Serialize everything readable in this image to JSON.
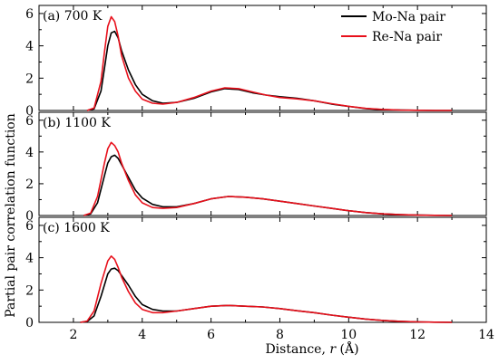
{
  "chart_data": {
    "type": "line",
    "xlabel_parts": [
      "Distance, ",
      "r",
      " (Å)"
    ],
    "ylabel": "Partial pair correlation function",
    "xlim": [
      1,
      14
    ],
    "ylim": [
      0,
      6.5
    ],
    "xticks": [
      2,
      4,
      6,
      8,
      10,
      12,
      14
    ],
    "yticks": [
      0,
      2,
      4,
      6
    ],
    "legend": {
      "placement": "top-right",
      "entries": [
        {
          "name": "Mo-Na pair",
          "color": "#000000"
        },
        {
          "name": "Re-Na pair",
          "color": "#e8101b"
        }
      ]
    },
    "panels": [
      {
        "label": "(a) 700 K",
        "series": [
          {
            "name": "Mo-Na pair",
            "color": "#000000",
            "x": [
              2.4,
              2.6,
              2.8,
              2.9,
              3.0,
              3.1,
              3.2,
              3.3,
              3.4,
              3.6,
              3.8,
              4.0,
              4.3,
              4.6,
              5.0,
              5.5,
              6.0,
              6.4,
              6.8,
              7.2,
              7.6,
              8.0,
              8.5,
              9.0,
              9.5,
              10.0,
              10.5,
              11.0,
              11.5,
              12.0,
              12.5,
              13.0
            ],
            "y": [
              0.0,
              0.1,
              1.2,
              2.6,
              4.0,
              4.8,
              4.9,
              4.5,
              3.7,
              2.5,
              1.6,
              1.0,
              0.6,
              0.45,
              0.5,
              0.75,
              1.15,
              1.35,
              1.3,
              1.1,
              0.95,
              0.85,
              0.75,
              0.6,
              0.4,
              0.25,
              0.12,
              0.05,
              0.02,
              0.01,
              0.0,
              0.0
            ]
          },
          {
            "name": "Re-Na pair",
            "color": "#e8101b",
            "x": [
              2.4,
              2.6,
              2.8,
              2.9,
              3.0,
              3.1,
              3.2,
              3.3,
              3.4,
              3.6,
              3.8,
              4.0,
              4.3,
              4.6,
              5.0,
              5.5,
              6.0,
              6.4,
              6.8,
              7.2,
              7.6,
              8.0,
              8.5,
              9.0,
              9.5,
              10.0,
              10.5,
              11.0,
              11.5,
              12.0,
              12.5,
              13.0
            ],
            "y": [
              0.0,
              0.15,
              1.8,
              3.6,
              5.2,
              5.8,
              5.5,
              4.6,
              3.4,
              2.0,
              1.2,
              0.7,
              0.45,
              0.4,
              0.5,
              0.8,
              1.2,
              1.4,
              1.35,
              1.15,
              0.95,
              0.8,
              0.72,
              0.6,
              0.42,
              0.26,
              0.13,
              0.06,
              0.02,
              0.01,
              0.0,
              0.0
            ]
          }
        ]
      },
      {
        "label": "(b) 1100 K",
        "series": [
          {
            "name": "Mo-Na pair",
            "color": "#000000",
            "x": [
              2.3,
              2.5,
              2.7,
              2.9,
              3.0,
              3.1,
              3.2,
              3.3,
              3.4,
              3.6,
              3.8,
              4.0,
              4.3,
              4.6,
              5.0,
              5.5,
              6.0,
              6.5,
              7.0,
              7.5,
              8.0,
              8.5,
              9.0,
              9.5,
              10.0,
              10.5,
              11.0,
              11.5,
              12.0,
              12.5,
              13.0
            ],
            "y": [
              0.0,
              0.1,
              0.8,
              2.5,
              3.3,
              3.7,
              3.8,
              3.6,
              3.2,
              2.4,
              1.6,
              1.1,
              0.7,
              0.55,
              0.55,
              0.75,
              1.05,
              1.2,
              1.15,
              1.05,
              0.9,
              0.75,
              0.6,
              0.45,
              0.3,
              0.18,
              0.1,
              0.05,
              0.02,
              0.01,
              0.0
            ]
          },
          {
            "name": "Re-Na pair",
            "color": "#e8101b",
            "x": [
              2.3,
              2.5,
              2.7,
              2.9,
              3.0,
              3.1,
              3.2,
              3.3,
              3.4,
              3.6,
              3.8,
              4.0,
              4.3,
              4.6,
              5.0,
              5.5,
              6.0,
              6.5,
              7.0,
              7.5,
              8.0,
              8.5,
              9.0,
              9.5,
              10.0,
              10.5,
              11.0,
              11.5,
              12.0,
              12.5,
              13.0
            ],
            "y": [
              0.0,
              0.15,
              1.2,
              3.3,
              4.2,
              4.6,
              4.4,
              4.0,
              3.3,
              2.2,
              1.3,
              0.8,
              0.5,
              0.45,
              0.5,
              0.75,
              1.05,
              1.2,
              1.15,
              1.05,
              0.9,
              0.75,
              0.6,
              0.45,
              0.3,
              0.18,
              0.1,
              0.05,
              0.02,
              0.01,
              0.0
            ]
          }
        ]
      },
      {
        "label": "(c) 1600 K",
        "series": [
          {
            "name": "Mo-Na pair",
            "color": "#000000",
            "x": [
              2.2,
              2.4,
              2.6,
              2.8,
              3.0,
              3.1,
              3.2,
              3.3,
              3.4,
              3.6,
              3.8,
              4.0,
              4.3,
              4.6,
              5.0,
              5.5,
              6.0,
              6.5,
              7.0,
              7.5,
              8.0,
              8.5,
              9.0,
              9.5,
              10.0,
              10.5,
              11.0,
              11.5,
              12.0,
              12.5,
              13.0
            ],
            "y": [
              0.0,
              0.05,
              0.4,
              1.6,
              3.0,
              3.3,
              3.35,
              3.2,
              2.9,
              2.3,
              1.6,
              1.1,
              0.8,
              0.7,
              0.7,
              0.85,
              1.0,
              1.05,
              1.0,
              0.95,
              0.85,
              0.72,
              0.6,
              0.45,
              0.32,
              0.2,
              0.12,
              0.06,
              0.03,
              0.01,
              0.0
            ]
          },
          {
            "name": "Re-Na pair",
            "color": "#e8101b",
            "x": [
              2.2,
              2.4,
              2.6,
              2.8,
              3.0,
              3.1,
              3.2,
              3.3,
              3.4,
              3.6,
              3.8,
              4.0,
              4.3,
              4.6,
              5.0,
              5.5,
              6.0,
              6.5,
              7.0,
              7.5,
              8.0,
              8.5,
              9.0,
              9.5,
              10.0,
              10.5,
              11.0,
              11.5,
              12.0,
              12.5,
              13.0
            ],
            "y": [
              0.0,
              0.08,
              0.7,
              2.4,
              3.8,
              4.1,
              3.9,
              3.4,
              2.8,
              1.9,
              1.2,
              0.8,
              0.6,
              0.6,
              0.7,
              0.85,
              1.0,
              1.05,
              1.0,
              0.95,
              0.85,
              0.72,
              0.6,
              0.45,
              0.32,
              0.2,
              0.12,
              0.06,
              0.03,
              0.01,
              0.0
            ]
          }
        ]
      }
    ]
  }
}
